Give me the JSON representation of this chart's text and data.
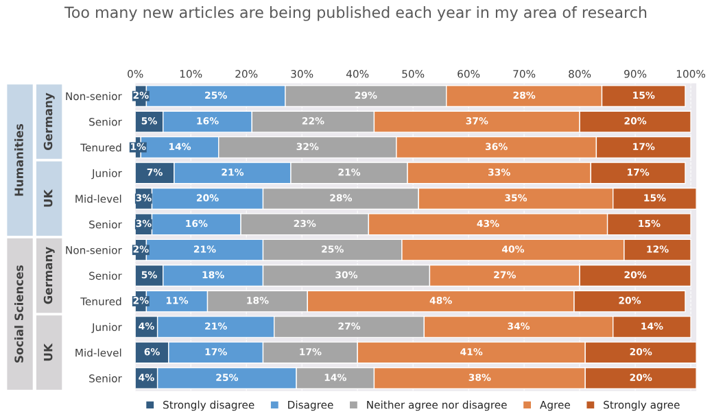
{
  "chart_data": {
    "type": "bar",
    "orientation": "horizontal",
    "stacked": true,
    "title": "Too many new articles are being published each year in my area of research",
    "categories": [
      "Non-senior",
      "Senior",
      "Tenured",
      "Junior",
      "Mid-level",
      "Senior",
      "Non-senior",
      "Senior",
      "Tenured",
      "Junior",
      "Mid-level",
      "Senior"
    ],
    "series": [
      {
        "name": "Strongly disagree",
        "color": "#335c81",
        "values": [
          2,
          5,
          1,
          7,
          3,
          3,
          2,
          5,
          2,
          4,
          6,
          4
        ],
        "value_labels": [
          "2%",
          "5%",
          "1%",
          "7%",
          "3%",
          "3%",
          "2%",
          "5%",
          "2%",
          "4%",
          "6%",
          "4%"
        ]
      },
      {
        "name": "Disagree",
        "color": "#5b9bd5",
        "values": [
          25,
          16,
          14,
          21,
          20,
          16,
          21,
          18,
          11,
          21,
          17,
          25
        ],
        "value_labels": [
          "25%",
          "16%",
          "14%",
          "21%",
          "20%",
          "16%",
          "21%",
          "18%",
          "11%",
          "21%",
          "17%",
          "25%"
        ]
      },
      {
        "name": "Neither agree nor disagree",
        "color": "#a5a5a5",
        "values": [
          29,
          22,
          32,
          21,
          28,
          23,
          25,
          30,
          18,
          27,
          17,
          14
        ],
        "value_labels": [
          "29%",
          "22%",
          "32%",
          "21%",
          "28%",
          "23%",
          "25%",
          "30%",
          "18%",
          "27%",
          "17%",
          "14%"
        ]
      },
      {
        "name": "Agree",
        "color": "#e0844a",
        "values": [
          28,
          37,
          36,
          33,
          35,
          43,
          40,
          27,
          48,
          34,
          41,
          38
        ],
        "value_labels": [
          "28%",
          "37%",
          "36%",
          "33%",
          "35%",
          "43%",
          "40%",
          "27%",
          "48%",
          "34%",
          "41%",
          "38%"
        ]
      },
      {
        "name": "Strongly agree",
        "color": "#bf5b25",
        "values": [
          15,
          20,
          17,
          17,
          15,
          15,
          12,
          20,
          20,
          14,
          20,
          20
        ],
        "value_labels": [
          "15%",
          "20%",
          "17%",
          "17%",
          "15%",
          "15%",
          "12%",
          "20%",
          "20%",
          "14%",
          "20%",
          "20%"
        ]
      }
    ],
    "xlim": [
      0,
      101
    ],
    "xticks": [
      {
        "value": 0,
        "label": "0%"
      },
      {
        "value": 10,
        "label": "10%"
      },
      {
        "value": 20,
        "label": "20%"
      },
      {
        "value": 30,
        "label": "30%"
      },
      {
        "value": 40,
        "label": "40%"
      },
      {
        "value": 50,
        "label": "50%"
      },
      {
        "value": 60,
        "label": "60%"
      },
      {
        "value": 70,
        "label": "70%"
      },
      {
        "value": 80,
        "label": "80%"
      },
      {
        "value": 90,
        "label": "90%"
      },
      {
        "value": 100,
        "label": "100%"
      }
    ],
    "annotations": [
      "Humanities",
      "Germany",
      "UK",
      "Social Sciences",
      "Germany",
      "UK"
    ],
    "grid": "x",
    "legend": "bottom"
  }
}
